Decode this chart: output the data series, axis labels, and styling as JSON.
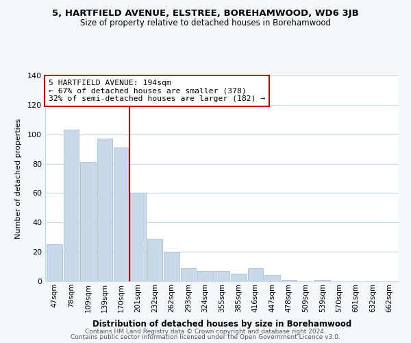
{
  "title": "5, HARTFIELD AVENUE, ELSTREE, BOREHAMWOOD, WD6 3JB",
  "subtitle": "Size of property relative to detached houses in Borehamwood",
  "xlabel": "Distribution of detached houses by size in Borehamwood",
  "ylabel": "Number of detached properties",
  "bar_labels": [
    "47sqm",
    "78sqm",
    "109sqm",
    "139sqm",
    "170sqm",
    "201sqm",
    "232sqm",
    "262sqm",
    "293sqm",
    "324sqm",
    "355sqm",
    "385sqm",
    "416sqm",
    "447sqm",
    "478sqm",
    "509sqm",
    "539sqm",
    "570sqm",
    "601sqm",
    "632sqm",
    "662sqm"
  ],
  "bar_values": [
    25,
    103,
    81,
    97,
    91,
    60,
    29,
    20,
    9,
    7,
    7,
    5,
    9,
    4,
    1,
    0,
    1,
    0,
    0,
    0,
    0
  ],
  "bar_color": "#c9d9e9",
  "bar_edge_color": "#a8bfd4",
  "vline_color": "#cc0000",
  "annotation_title": "5 HARTFIELD AVENUE: 194sqm",
  "annotation_line1": "← 67% of detached houses are smaller (378)",
  "annotation_line2": "32% of semi-detached houses are larger (182) →",
  "annotation_box_facecolor": "#ffffff",
  "annotation_box_edgecolor": "#cc0000",
  "ylim": [
    0,
    140
  ],
  "yticks": [
    0,
    20,
    40,
    60,
    80,
    100,
    120,
    140
  ],
  "footer1": "Contains HM Land Registry data © Crown copyright and database right 2024.",
  "footer2": "Contains public sector information licensed under the Open Government Licence v3.0.",
  "bg_color": "#f5f8fb",
  "plot_bg_color": "#ffffff",
  "grid_color": "#c8d8e8"
}
